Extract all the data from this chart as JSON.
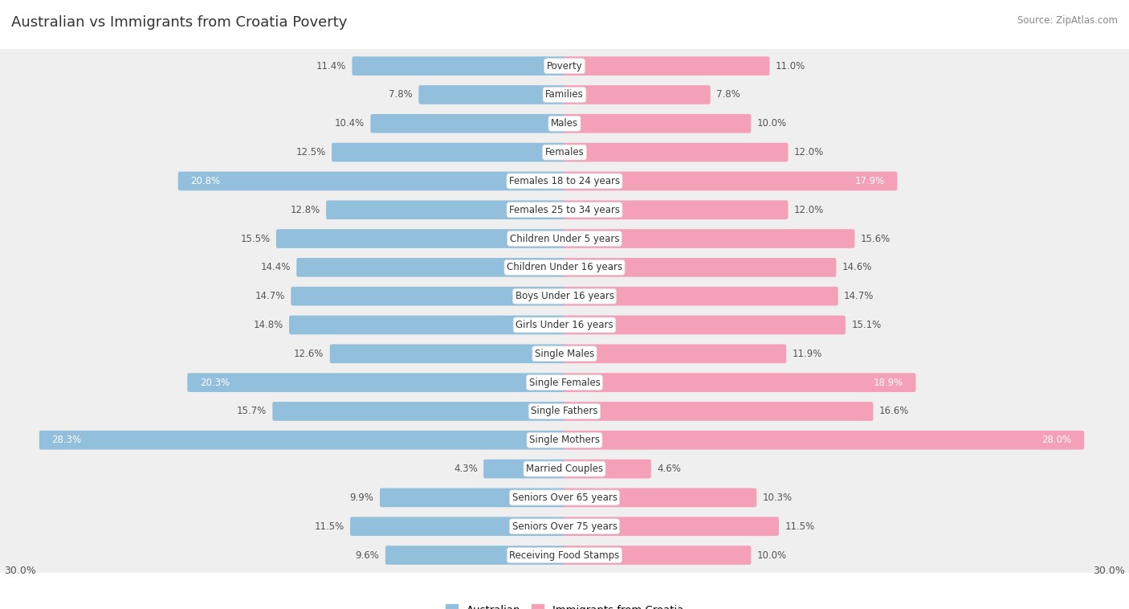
{
  "title": "Australian vs Immigrants from Croatia Poverty",
  "source": "Source: ZipAtlas.com",
  "categories": [
    "Poverty",
    "Families",
    "Males",
    "Females",
    "Females 18 to 24 years",
    "Females 25 to 34 years",
    "Children Under 5 years",
    "Children Under 16 years",
    "Boys Under 16 years",
    "Girls Under 16 years",
    "Single Males",
    "Single Females",
    "Single Fathers",
    "Single Mothers",
    "Married Couples",
    "Seniors Over 65 years",
    "Seniors Over 75 years",
    "Receiving Food Stamps"
  ],
  "australian": [
    11.4,
    7.8,
    10.4,
    12.5,
    20.8,
    12.8,
    15.5,
    14.4,
    14.7,
    14.8,
    12.6,
    20.3,
    15.7,
    28.3,
    4.3,
    9.9,
    11.5,
    9.6
  ],
  "croatia": [
    11.0,
    7.8,
    10.0,
    12.0,
    17.9,
    12.0,
    15.6,
    14.6,
    14.7,
    15.1,
    11.9,
    18.9,
    16.6,
    28.0,
    4.6,
    10.3,
    11.5,
    10.0
  ],
  "max_val": 30.0,
  "bar_color_australian": "#92C0DC",
  "bar_color_croatia": "#F4A0B8",
  "label_color_normal": "#555555",
  "label_color_white": "#FFFFFF",
  "white_label_threshold_aus": 17.0,
  "white_label_threshold_cro": 17.0
}
